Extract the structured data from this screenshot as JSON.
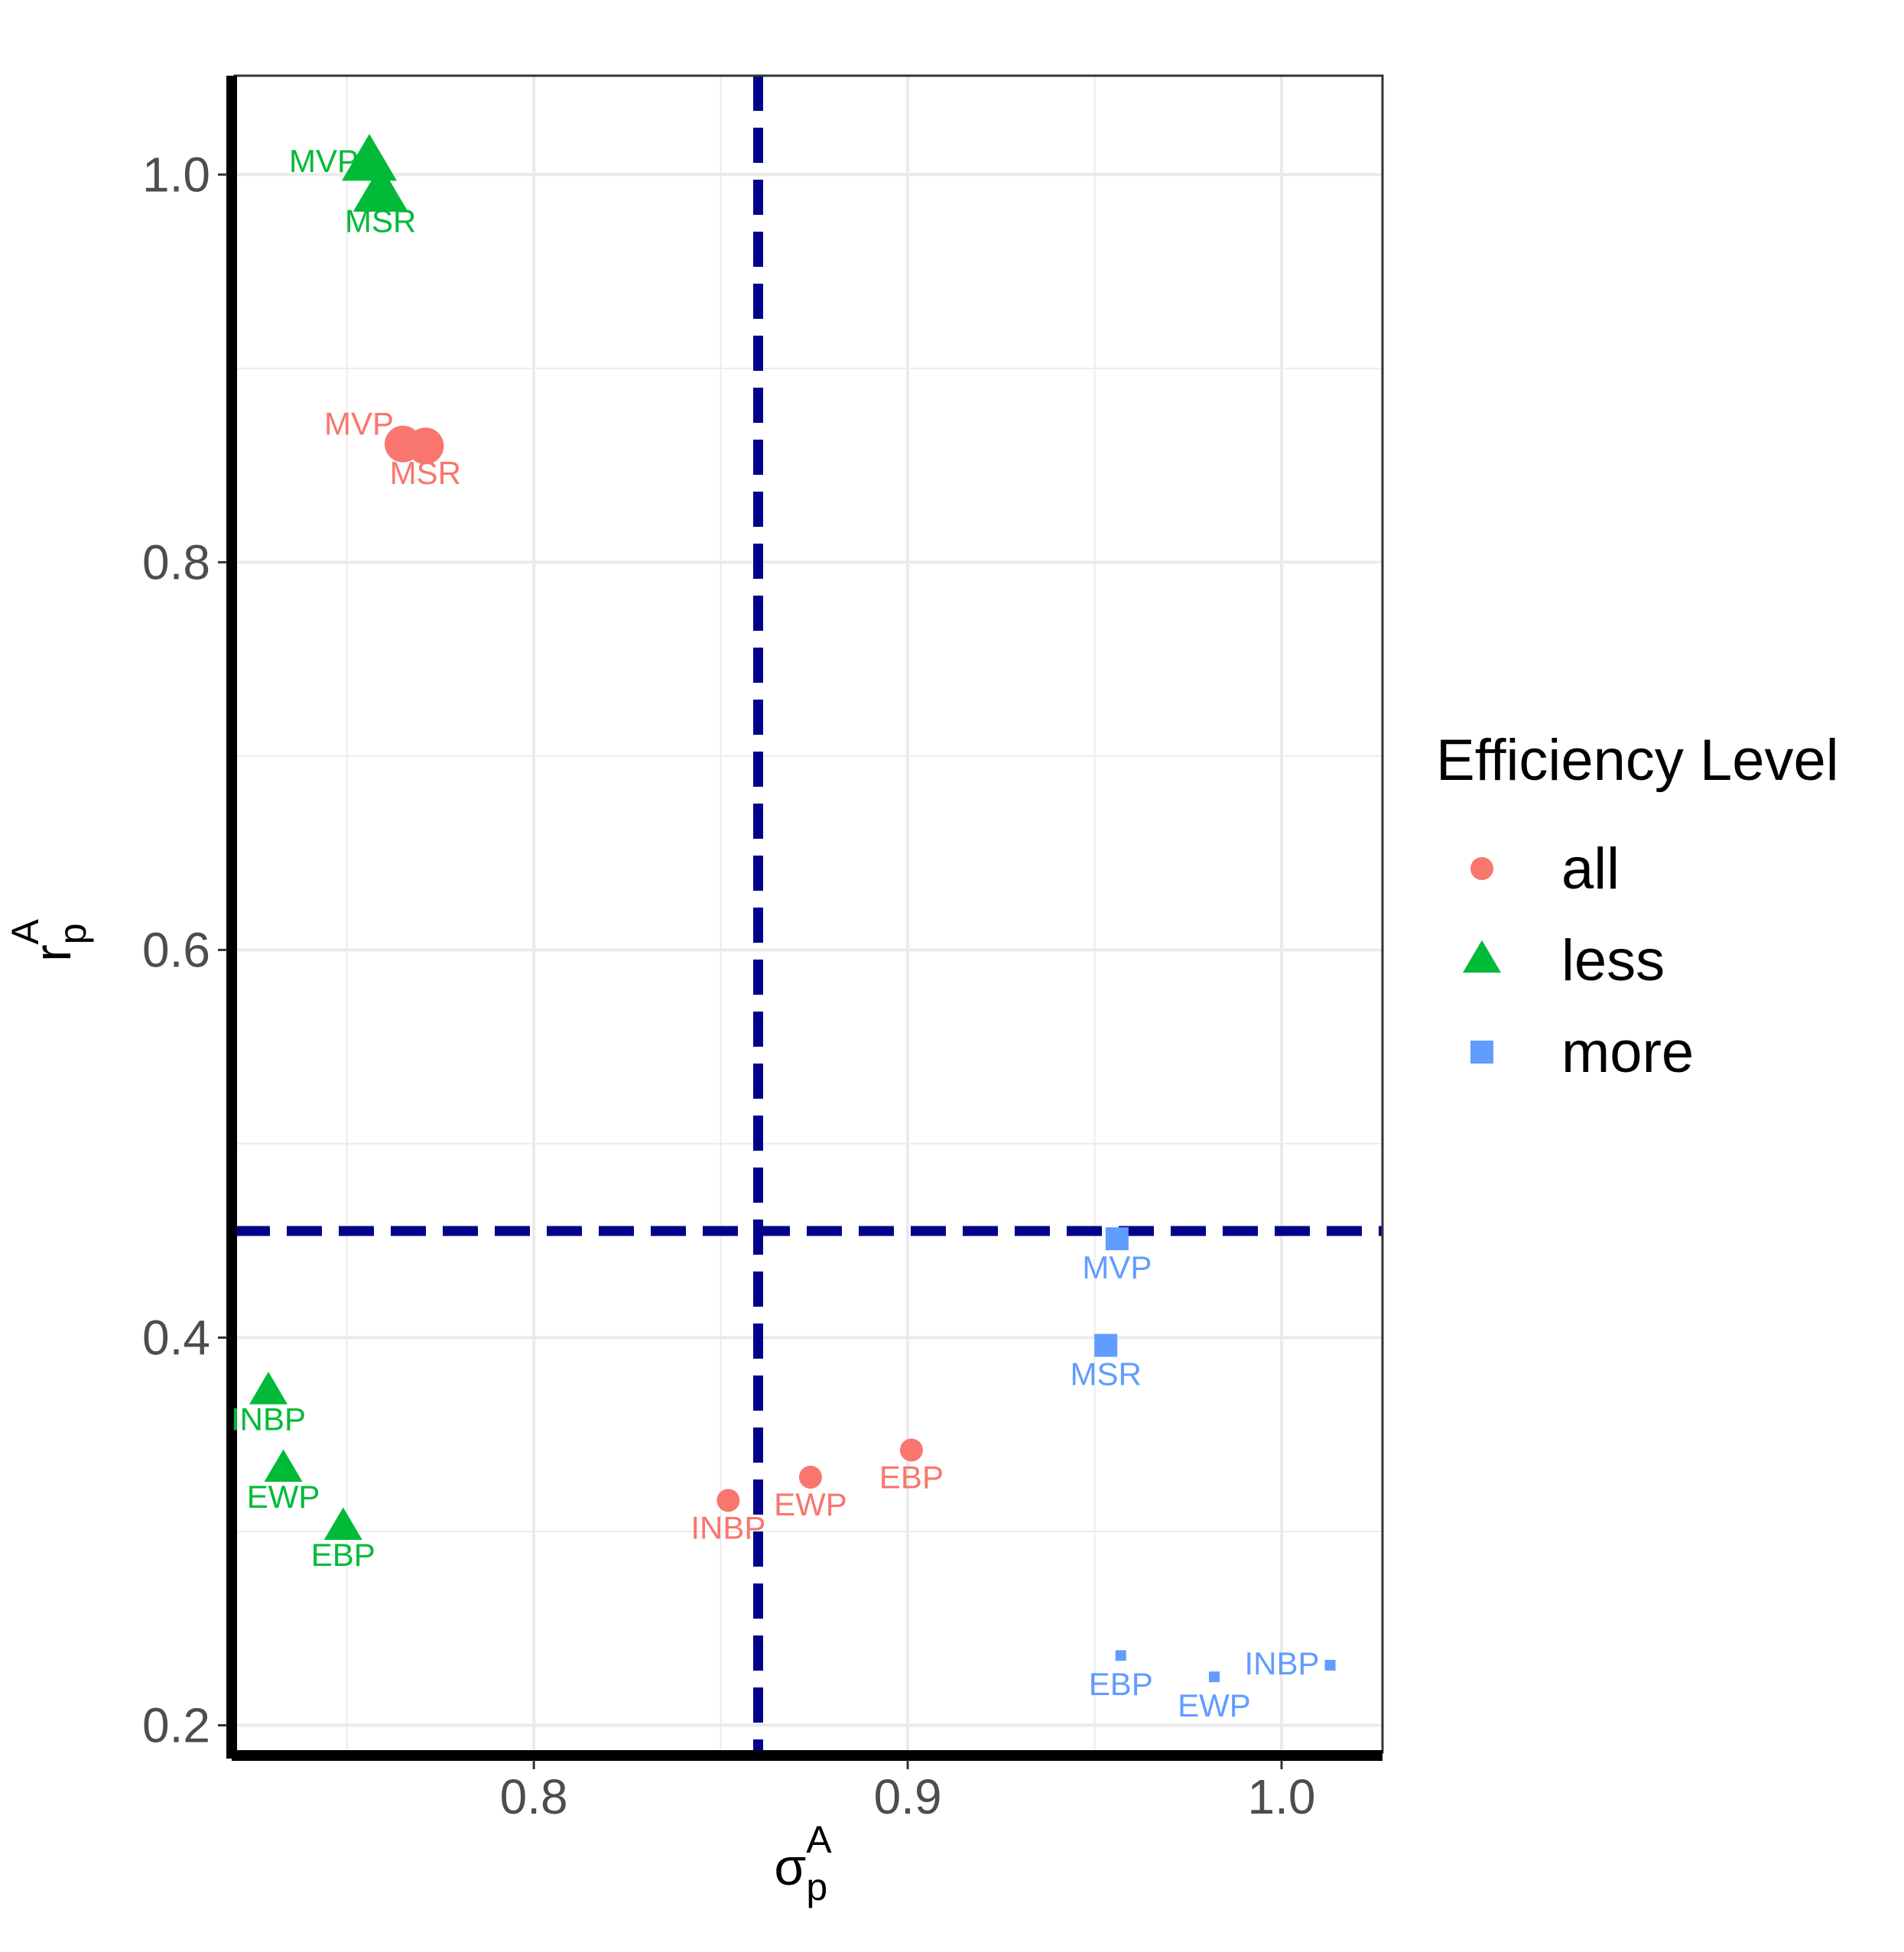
{
  "chart_data": {
    "type": "scatter",
    "title": "",
    "xlabel": {
      "main": "σ",
      "sub": "p",
      "sup": "A"
    },
    "ylabel": {
      "main": "r",
      "sub": "p",
      "sup": "A"
    },
    "xlim": [
      0.72,
      1.027
    ],
    "ylim": [
      0.186,
      1.051
    ],
    "xticks": [
      "0.8",
      "0.9",
      "1.0"
    ],
    "yticks": [
      "0.2",
      "0.4",
      "0.6",
      "0.8",
      "1.0"
    ],
    "grid": true,
    "reference_lines": {
      "vertical_x": 0.86,
      "horizontal_y": 0.455,
      "color": "#00008B",
      "style": "dashed"
    },
    "legend": {
      "title": "Efficiency Level",
      "position": "right",
      "entries": [
        {
          "label": "all",
          "shape": "circle",
          "color": "#F8766D"
        },
        {
          "label": "less",
          "shape": "triangle",
          "color": "#00BA38"
        },
        {
          "label": "more",
          "shape": "square",
          "color": "#619CFF"
        }
      ]
    },
    "series": [
      {
        "name": "all",
        "color": "#F8766D",
        "shape": "circle",
        "points": [
          {
            "label": "MVP",
            "x": 0.765,
            "y": 0.861,
            "size": 3,
            "label_pos": "upper-left"
          },
          {
            "label": "MSR",
            "x": 0.771,
            "y": 0.86,
            "size": 3,
            "label_pos": "below"
          },
          {
            "label": "INBP",
            "x": 0.852,
            "y": 0.316,
            "size": 1,
            "label_pos": "below"
          },
          {
            "label": "EWP",
            "x": 0.874,
            "y": 0.328,
            "size": 1,
            "label_pos": "below"
          },
          {
            "label": "EBP",
            "x": 0.901,
            "y": 0.342,
            "size": 1,
            "label_pos": "below"
          }
        ]
      },
      {
        "name": "less",
        "color": "#00BA38",
        "shape": "triangle",
        "points": [
          {
            "label": "MVP",
            "x": 0.756,
            "y": 1.006,
            "size": 3,
            "label_pos": "left"
          },
          {
            "label": "MSR",
            "x": 0.759,
            "y": 0.99,
            "size": 3,
            "label_pos": "below"
          },
          {
            "label": "INBP",
            "x": 0.729,
            "y": 0.372,
            "size": 1,
            "label_pos": "below"
          },
          {
            "label": "EWP",
            "x": 0.733,
            "y": 0.332,
            "size": 1,
            "label_pos": "below"
          },
          {
            "label": "EBP",
            "x": 0.749,
            "y": 0.302,
            "size": 1,
            "label_pos": "below"
          }
        ]
      },
      {
        "name": "more",
        "color": "#619CFF",
        "shape": "square",
        "points": [
          {
            "label": "MVP",
            "x": 0.956,
            "y": 0.451,
            "size": 2,
            "label_pos": "below"
          },
          {
            "label": "MSR",
            "x": 0.953,
            "y": 0.396,
            "size": 2,
            "label_pos": "below"
          },
          {
            "label": "EBP",
            "x": 0.957,
            "y": 0.236,
            "size": 0,
            "label_pos": "below"
          },
          {
            "label": "EWP",
            "x": 0.982,
            "y": 0.225,
            "size": 0,
            "label_pos": "below"
          },
          {
            "label": "INBP",
            "x": 1.013,
            "y": 0.231,
            "size": 0,
            "label_pos": "left"
          }
        ]
      }
    ]
  }
}
